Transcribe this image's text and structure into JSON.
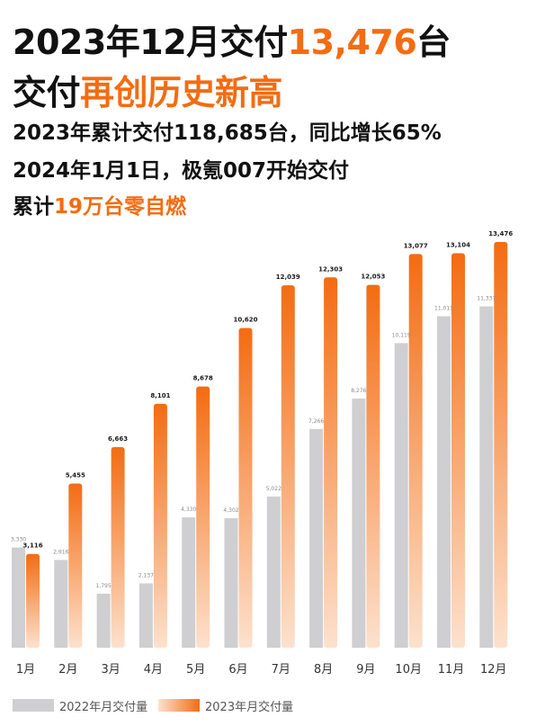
{
  "headline": {
    "line1_prefix": "2023年12月交付",
    "line1_highlight": "13,476",
    "line1_suffix": "台",
    "line2_prefix": "交付",
    "line2_highlight": "再创历史新高",
    "line3": "2023年累计交付118,685台，同比增长65%",
    "line4": "2024年1月1日，极氪007开始交付",
    "line5_prefix": "累计",
    "line5_highlight": "19万台零自燃"
  },
  "colors": {
    "accent": "#f36c12",
    "bar_2022": "#cfcfd2",
    "bar_2023_top": "#f36c12",
    "bar_2023_bottom": "#fde1cd"
  },
  "chart_data": {
    "type": "bar",
    "categories": [
      "1月",
      "2月",
      "3月",
      "4月",
      "5月",
      "6月",
      "7月",
      "8月",
      "9月",
      "10月",
      "11月",
      "12月"
    ],
    "series": [
      {
        "name": "2022年月交付量",
        "values": [
          3330,
          2916,
          1795,
          2137,
          4330,
          4302,
          5022,
          7266,
          8276,
          10119,
          11011,
          11337
        ],
        "labels": [
          "3,330",
          "2,916",
          "1,795",
          "2,137",
          "4,330",
          "4,302",
          "5,022",
          "7,266",
          "8,276",
          "10,119",
          "11,011",
          "11,337"
        ]
      },
      {
        "name": "2023年月交付量",
        "values": [
          3116,
          5455,
          6663,
          8101,
          8678,
          10620,
          12039,
          12303,
          12053,
          13077,
          13104,
          13476
        ],
        "labels": [
          "3,116",
          "5,455",
          "6,663",
          "8,101",
          "8,678",
          "10,620",
          "12,039",
          "12,303",
          "12,053",
          "13,077",
          "13,104",
          "13,476"
        ]
      }
    ],
    "ylim": [
      0,
      13476
    ],
    "grid": false,
    "legend": "bottom-left"
  }
}
